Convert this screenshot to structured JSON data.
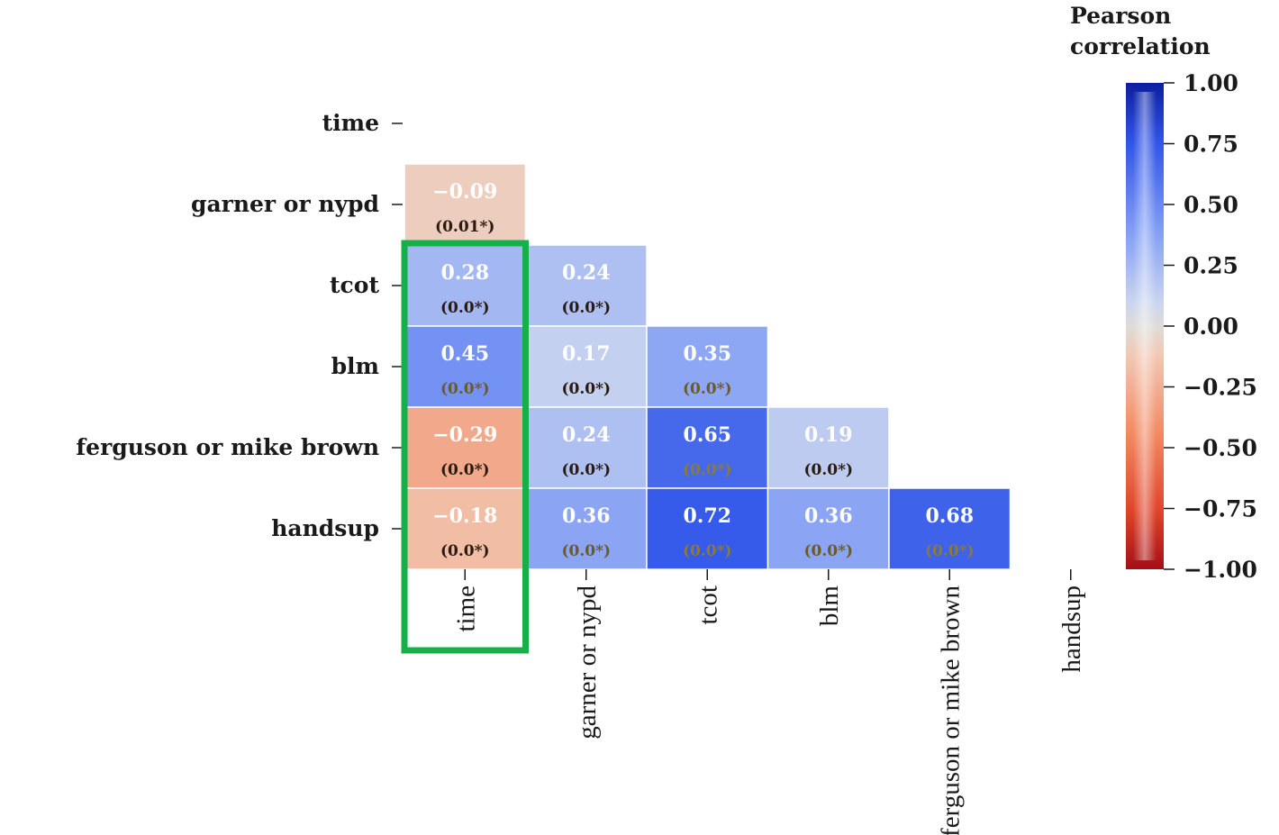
{
  "chart_data": {
    "type": "heatmap",
    "variables": [
      "time",
      "garner or nypd",
      "tcot",
      "blm",
      "ferguson or mike brown",
      "handsup"
    ],
    "cells": [
      {
        "row": "garner or nypd",
        "col": "time",
        "r": -0.09,
        "p": "(0.01*)"
      },
      {
        "row": "tcot",
        "col": "time",
        "r": 0.28,
        "p": "(0.0*)"
      },
      {
        "row": "tcot",
        "col": "garner or nypd",
        "r": 0.24,
        "p": "(0.0*)"
      },
      {
        "row": "blm",
        "col": "time",
        "r": 0.45,
        "p": "(0.0*)"
      },
      {
        "row": "blm",
        "col": "garner or nypd",
        "r": 0.17,
        "p": "(0.0*)"
      },
      {
        "row": "blm",
        "col": "tcot",
        "r": 0.35,
        "p": "(0.0*)"
      },
      {
        "row": "ferguson or mike brown",
        "col": "time",
        "r": -0.29,
        "p": "(0.0*)"
      },
      {
        "row": "ferguson or mike brown",
        "col": "garner or nypd",
        "r": 0.24,
        "p": "(0.0*)"
      },
      {
        "row": "ferguson or mike brown",
        "col": "tcot",
        "r": 0.65,
        "p": "(0.0*)"
      },
      {
        "row": "ferguson or mike brown",
        "col": "blm",
        "r": 0.19,
        "p": "(0.0*)"
      },
      {
        "row": "handsup",
        "col": "time",
        "r": -0.18,
        "p": "(0.0*)"
      },
      {
        "row": "handsup",
        "col": "garner or nypd",
        "r": 0.36,
        "p": "(0.0*)"
      },
      {
        "row": "handsup",
        "col": "tcot",
        "r": 0.72,
        "p": "(0.0*)"
      },
      {
        "row": "handsup",
        "col": "blm",
        "r": 0.36,
        "p": "(0.0*)"
      },
      {
        "row": "handsup",
        "col": "ferguson or mike brown",
        "r": 0.68,
        "p": "(0.0*)"
      }
    ],
    "colorbar": {
      "title_lines": [
        "Pearson",
        "correlation"
      ],
      "range": [
        -1.0,
        1.0
      ],
      "ticks": [
        "1.00",
        "0.75",
        "0.50",
        "0.25",
        "0.00",
        "−0.25",
        "−0.50",
        "−0.75",
        "−1.00"
      ],
      "colormap": "red-white-blue"
    },
    "highlight": {
      "column": "time",
      "color": "#16b04a"
    }
  }
}
